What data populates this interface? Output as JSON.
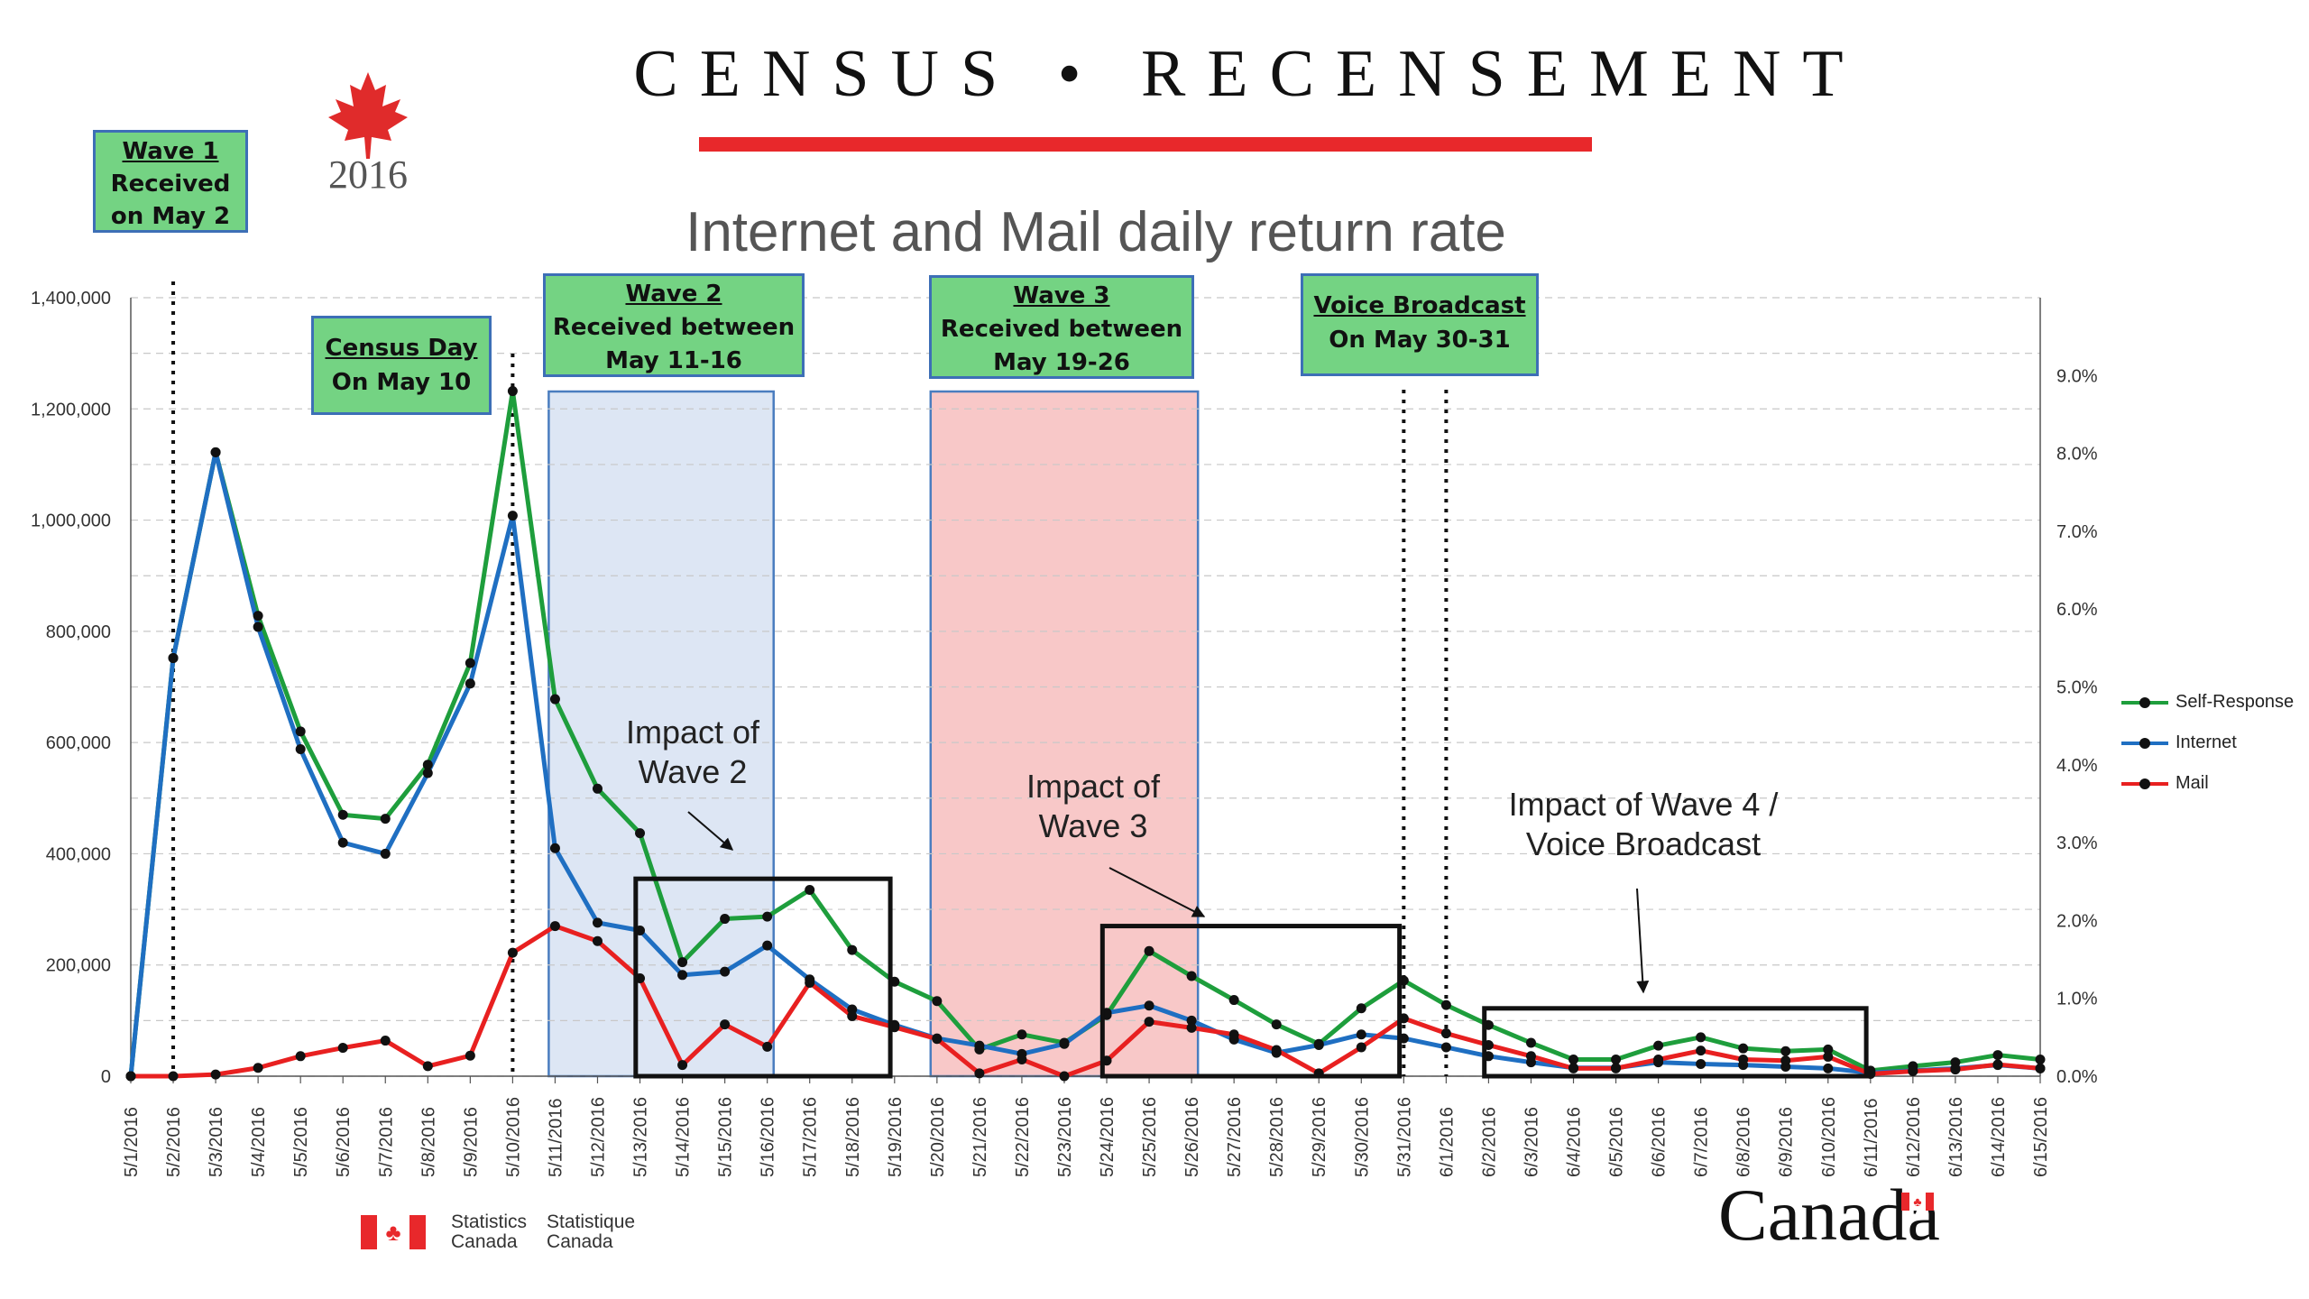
{
  "header": {
    "title": "CENSUS • RECENSEMENT",
    "logo_year": "2016",
    "logo_icon": "maple-leaf-icon",
    "accent_color": "#e8282b"
  },
  "chart_data": {
    "type": "line",
    "title": "Internet and Mail daily return rate",
    "xlabel": "",
    "ylabel": "",
    "ylim": [
      0,
      1400000
    ],
    "y2lim": [
      0,
      10
    ],
    "y_ticks": [
      "0",
      "200,000",
      "400,000",
      "600,000",
      "800,000",
      "1,000,000",
      "1,200,000",
      "1,400,000"
    ],
    "y2_ticks": [
      "0.0%",
      "1.0%",
      "2.0%",
      "3.0%",
      "4.0%",
      "5.0%",
      "6.0%",
      "7.0%",
      "8.0%",
      "9.0%"
    ],
    "grid": true,
    "legend_position": "right",
    "categories": [
      "5/1/2016",
      "5/2/2016",
      "5/3/2016",
      "5/4/2016",
      "5/5/2016",
      "5/6/2016",
      "5/7/2016",
      "5/8/2016",
      "5/9/2016",
      "5/10/2016",
      "5/11/2016",
      "5/12/2016",
      "5/13/2016",
      "5/14/2016",
      "5/15/2016",
      "5/16/2016",
      "5/17/2016",
      "5/18/2016",
      "5/19/2016",
      "5/20/2016",
      "5/21/2016",
      "5/22/2016",
      "5/23/2016",
      "5/24/2016",
      "5/25/2016",
      "5/26/2016",
      "5/27/2016",
      "5/28/2016",
      "5/29/2016",
      "5/30/2016",
      "5/31/2016",
      "6/1/2016",
      "6/2/2016",
      "6/3/2016",
      "6/4/2016",
      "6/5/2016",
      "6/6/2016",
      "6/7/2016",
      "6/8/2016",
      "6/9/2016",
      "6/10/2016",
      "6/11/2016",
      "6/12/2016",
      "6/13/2016",
      "6/14/2016",
      "6/15/2016"
    ],
    "series": [
      {
        "name": "Self-Response",
        "color": "#1e9e3c",
        "values": [
          0,
          752000,
          1122000,
          828000,
          620000,
          470000,
          463000,
          560000,
          743000,
          1232000,
          678000,
          517000,
          437000,
          205000,
          283000,
          287000,
          335000,
          227000,
          170000,
          135000,
          48000,
          75000,
          60000,
          110000,
          225000,
          180000,
          137000,
          93000,
          58000,
          122000,
          172000,
          128000,
          92000,
          60000,
          30000,
          30000,
          55000,
          70000,
          50000,
          45000,
          48000,
          10000,
          18000,
          25000,
          38000,
          30000
        ]
      },
      {
        "name": "Internet",
        "color": "#1f6fc2",
        "values": [
          0,
          752000,
          1122000,
          808000,
          588000,
          420000,
          400000,
          545000,
          706000,
          1008000,
          410000,
          276000,
          262000,
          182000,
          188000,
          235000,
          174000,
          120000,
          92000,
          68000,
          55000,
          40000,
          58000,
          114000,
          127000,
          100000,
          66000,
          42000,
          56000,
          75000,
          68000,
          52000,
          36000,
          25000,
          15000,
          15000,
          25000,
          22000,
          20000,
          17000,
          14000,
          6000,
          10000,
          14000,
          20000,
          14000
        ]
      },
      {
        "name": "Mail",
        "color": "#e82020",
        "values": [
          0,
          0,
          3000,
          15000,
          36000,
          51000,
          64000,
          18000,
          37000,
          222000,
          270000,
          243000,
          176000,
          20000,
          93000,
          53000,
          168000,
          108000,
          88000,
          67000,
          5000,
          30000,
          0,
          28000,
          98000,
          87000,
          75000,
          47000,
          5000,
          52000,
          104000,
          77000,
          56000,
          36000,
          14000,
          14000,
          30000,
          46000,
          30000,
          28000,
          35000,
          4000,
          9000,
          12000,
          21000,
          14000
        ]
      }
    ],
    "shaded_regions": [
      {
        "from": "5/11/2016",
        "to": "5/16/2016",
        "color": "#dde6f4"
      },
      {
        "from": "5/20/2016",
        "to": "5/26/2016",
        "color": "#f8c8c8"
      }
    ],
    "dotted_lines": [
      "5/2/2016",
      "5/10/2016",
      "5/31/2016",
      "6/1/2016"
    ],
    "impact_boxes": [
      {
        "from": "5/13/2016",
        "to": "5/19/2016",
        "top": 355000
      },
      {
        "from": "5/24/2016",
        "to": "5/31/2016",
        "top": 270000
      },
      {
        "from": "6/2/2016",
        "to": "6/11/2016",
        "top": 122000
      }
    ],
    "annotations": [
      {
        "name": "impact-wave-2",
        "lines": [
          "Impact of",
          "Wave 2"
        ]
      },
      {
        "name": "impact-wave-3",
        "lines": [
          "Impact of",
          "Wave 3"
        ]
      },
      {
        "name": "impact-wave-4",
        "lines": [
          "Impact of Wave 4 /",
          "Voice Broadcast"
        ]
      }
    ],
    "callouts": [
      {
        "name": "wave-1-callout",
        "title": "Wave 1",
        "lines": [
          "Received",
          "on May 2"
        ]
      },
      {
        "name": "census-day-callout",
        "title": "Census Day",
        "lines": [
          "On May 10"
        ]
      },
      {
        "name": "wave-2-callout",
        "title": "Wave 2",
        "lines": [
          "Received between",
          "May 11-16"
        ]
      },
      {
        "name": "wave-3-callout",
        "title": "Wave 3",
        "lines": [
          "Received between",
          "May 19-26"
        ]
      },
      {
        "name": "voice-broadcast-callout",
        "title": "Voice Broadcast",
        "lines": [
          "On May 30-31"
        ]
      }
    ]
  },
  "footer": {
    "agency_en": [
      "Statistics",
      "Canada"
    ],
    "agency_fr": [
      "Statistique",
      "Canada"
    ],
    "wordmark": "Canada",
    "flag_icon": "canada-flag-icon"
  }
}
